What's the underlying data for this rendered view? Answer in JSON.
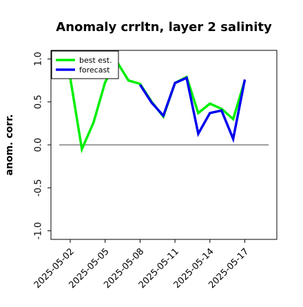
{
  "chart_data": {
    "type": "line",
    "title": "Anomaly crrltn, layer 2 salinity",
    "xlabel": "",
    "ylabel": "anom. corr.",
    "ylim": [
      -1.1,
      1.1
    ],
    "yticks": [
      -1.0,
      -0.5,
      0.0,
      0.5,
      1.0
    ],
    "ytick_labels": [
      "-1.0",
      "-0.5",
      "0.0",
      "0.5",
      "1.0"
    ],
    "xticks": [
      "2025-05-02",
      "2025-05-05",
      "2025-05-08",
      "2025-05-11",
      "2025-05-14",
      "2025-05-17"
    ],
    "highlight_xtick": "2025-05-08",
    "highlight_color": "#228b22",
    "x": [
      "2025-05-02",
      "2025-05-03",
      "2025-05-04",
      "2025-05-05",
      "2025-05-06",
      "2025-05-07",
      "2025-05-08",
      "2025-05-09",
      "2025-05-10",
      "2025-05-11",
      "2025-05-12",
      "2025-05-13",
      "2025-05-14",
      "2025-05-15",
      "2025-05-16",
      "2025-05-17"
    ],
    "series": [
      {
        "name": "best est.",
        "color": "#00ee00",
        "values": [
          0.78,
          -0.05,
          0.26,
          0.73,
          0.97,
          0.75,
          0.71,
          0.5,
          0.33,
          0.72,
          0.79,
          0.37,
          0.48,
          0.42,
          0.3,
          0.75
        ]
      },
      {
        "name": "forecast",
        "color": "#0000ee",
        "values": [
          null,
          null,
          null,
          null,
          null,
          null,
          0.7,
          0.49,
          0.34,
          0.72,
          0.78,
          0.13,
          0.37,
          0.4,
          0.07,
          0.76
        ]
      }
    ],
    "reference_line": 0.0,
    "reference_line_color": "#666666",
    "legend_position": "top-left",
    "grid": false
  }
}
